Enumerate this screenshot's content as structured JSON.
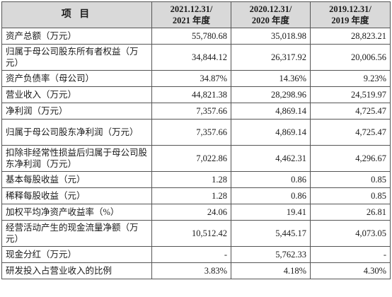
{
  "header": {
    "item": "项  目",
    "col1": {
      "line1": "2021.12.31/",
      "line2": "2021 年度"
    },
    "col2": {
      "line1": "2020.12.31/",
      "line2": "2020 年度"
    },
    "col3": {
      "line1": "2019.12.31/",
      "line2": "2019 年度"
    }
  },
  "rows": [
    {
      "label": "资产总额（万元）",
      "v2021": "55,780.68",
      "v2020": "35,018.98",
      "v2019": "28,823.21"
    },
    {
      "label": "归属于母公司股东所有者权益（万元）",
      "v2021": "34,844.12",
      "v2020": "26,317.92",
      "v2019": "20,006.56"
    },
    {
      "label": "资产负债率（母公司）",
      "v2021": "34.87%",
      "v2020": "14.36%",
      "v2019": "9.23%"
    },
    {
      "label": "营业收入（万元）",
      "v2021": "44,821.38",
      "v2020": "28,298.96",
      "v2019": "24,519.97"
    },
    {
      "label": "净利润（万元）",
      "v2021": "7,357.66",
      "v2020": "4,869.14",
      "v2019": "4,725.47"
    },
    {
      "label": "归属于母公司股东净利润（万元）",
      "v2021": "7,357.66",
      "v2020": "4,869.14",
      "v2019": "4,725.47"
    },
    {
      "label": "扣除非经常性损益后归属于母公司股东净利润（万元）",
      "v2021": "7,022.86",
      "v2020": "4,462.31",
      "v2019": "4,296.67"
    },
    {
      "label": "基本每股收益（元）",
      "v2021": "1.28",
      "v2020": "0.86",
      "v2019": "0.85"
    },
    {
      "label": "稀释每股收益（元）",
      "v2021": "1.28",
      "v2020": "0.86",
      "v2019": "0.85"
    },
    {
      "label": "加权平均净资产收益率（%）",
      "v2021": "24.06",
      "v2020": "19.41",
      "v2019": "26.81"
    },
    {
      "label": "经营活动产生的现金流量净额（万元）",
      "v2021": "10,512.42",
      "v2020": "5,445.17",
      "v2019": "4,073.05"
    },
    {
      "label": "现金分红（万元）",
      "v2021": "-",
      "v2020": "5,762.33",
      "v2019": "-"
    },
    {
      "label": "研发投入占营业收入的比例",
      "v2021": "3.83%",
      "v2020": "4.18%",
      "v2019": "4.30%"
    }
  ]
}
